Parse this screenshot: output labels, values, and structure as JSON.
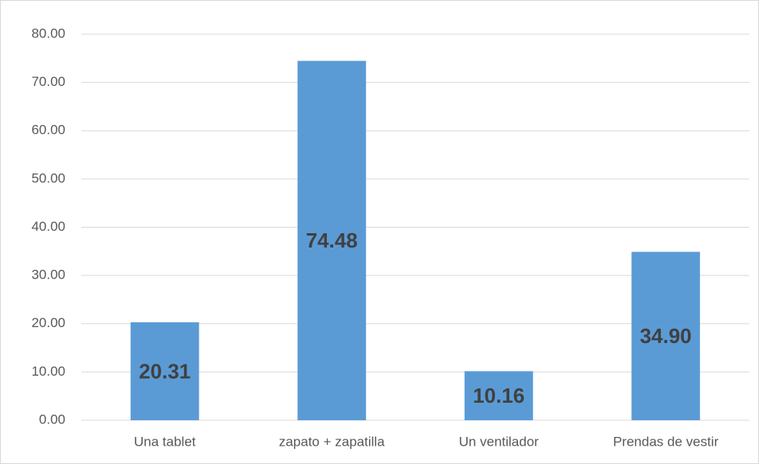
{
  "chart_data": {
    "type": "bar",
    "categories": [
      "Una tablet",
      "zapato + zapatilla",
      "Un ventilador",
      "Prendas de vestir"
    ],
    "values": [
      20.31,
      74.48,
      10.16,
      34.9
    ],
    "value_labels": [
      "20.31",
      "74.48",
      "10.16",
      "34.90"
    ],
    "color": "#5b9bd5",
    "ylim": [
      0,
      80
    ],
    "yticks": [
      {
        "value": 0,
        "label": "0.00"
      },
      {
        "value": 10,
        "label": "10.00"
      },
      {
        "value": 20,
        "label": "20.00"
      },
      {
        "value": 30,
        "label": "30.00"
      },
      {
        "value": 40,
        "label": "40.00"
      },
      {
        "value": 50,
        "label": "50.00"
      },
      {
        "value": 60,
        "label": "60.00"
      },
      {
        "value": 70,
        "label": "70.00"
      },
      {
        "value": 80,
        "label": "80.00"
      }
    ],
    "grid": true
  }
}
